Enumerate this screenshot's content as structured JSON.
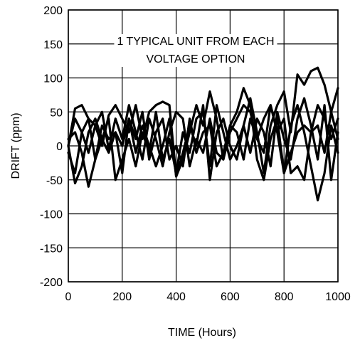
{
  "chart_data": {
    "type": "line",
    "title": "",
    "xlabel": "TIME (Hours)",
    "ylabel": "DRIFT (ppm)",
    "xlim": [
      0,
      1000
    ],
    "ylim": [
      -200,
      200
    ],
    "xticks": [
      0,
      200,
      400,
      600,
      800,
      1000
    ],
    "yticks": [
      -200,
      -150,
      -100,
      -50,
      0,
      50,
      100,
      150,
      200
    ],
    "grid": true,
    "annotation": [
      "1 TYPICAL UNIT FROM EACH",
      "VOLTAGE OPTION"
    ],
    "series": [
      {
        "x": [
          0,
          25,
          50,
          75,
          100,
          125,
          150,
          175,
          200,
          225,
          250,
          275,
          300,
          325,
          350,
          375,
          400,
          425,
          450,
          475,
          500,
          525,
          550,
          575,
          600,
          625,
          650,
          675,
          700,
          725,
          750,
          775,
          800,
          825,
          850,
          875,
          900,
          925,
          950,
          975,
          1000
        ],
        "y": [
          0,
          55,
          60,
          40,
          30,
          0,
          45,
          60,
          40,
          20,
          60,
          10,
          50,
          60,
          65,
          60,
          -45,
          -20,
          20,
          60,
          30,
          80,
          40,
          -20,
          20,
          40,
          60,
          50,
          10,
          40,
          60,
          20,
          40,
          -40,
          -30,
          -50,
          20,
          60,
          40,
          10,
          40
        ]
      },
      {
        "x": [
          0,
          25,
          50,
          75,
          100,
          125,
          150,
          175,
          200,
          225,
          250,
          275,
          300,
          325,
          350,
          375,
          400,
          425,
          450,
          475,
          500,
          525,
          550,
          575,
          600,
          625,
          650,
          675,
          700,
          725,
          750,
          775,
          800,
          825,
          850,
          875,
          900,
          925,
          950,
          975,
          1000
        ],
        "y": [
          0,
          -55,
          -30,
          20,
          40,
          10,
          -10,
          20,
          0,
          40,
          -10,
          30,
          0,
          -30,
          0,
          40,
          -45,
          -10,
          30,
          0,
          60,
          -50,
          20,
          40,
          0,
          -20,
          30,
          70,
          20,
          -40,
          30,
          60,
          80,
          20,
          105,
          90,
          110,
          115,
          90,
          50,
          85
        ]
      },
      {
        "x": [
          0,
          25,
          50,
          75,
          100,
          125,
          150,
          175,
          200,
          225,
          250,
          275,
          300,
          325,
          350,
          375,
          400,
          425,
          450,
          475,
          500,
          525,
          550,
          575,
          600,
          625,
          650,
          675,
          700,
          725,
          750,
          775,
          800,
          825,
          850,
          875,
          900,
          925,
          950,
          975,
          1000
        ],
        "y": [
          0,
          40,
          20,
          -10,
          30,
          50,
          -5,
          40,
          10,
          60,
          20,
          -20,
          40,
          10,
          -30,
          20,
          50,
          40,
          -30,
          10,
          -10,
          40,
          -10,
          -20,
          30,
          50,
          85,
          60,
          -20,
          -50,
          10,
          40,
          -40,
          30,
          60,
          20,
          -30,
          -80,
          -40,
          30,
          -10
        ]
      },
      {
        "x": [
          0,
          25,
          50,
          75,
          100,
          125,
          150,
          175,
          200,
          225,
          250,
          275,
          300,
          325,
          350,
          375,
          400,
          425,
          450,
          475,
          500,
          525,
          550,
          575,
          600,
          625,
          650,
          675,
          700,
          725,
          750,
          775,
          800,
          825,
          850,
          875,
          900,
          925,
          950,
          975,
          1000
        ],
        "y": [
          10,
          20,
          -10,
          -60,
          -20,
          10,
          40,
          -50,
          -20,
          10,
          -30,
          20,
          -10,
          50,
          -20,
          10,
          -40,
          20,
          -10,
          40,
          50,
          -30,
          60,
          20,
          -20,
          0,
          30,
          -10,
          40,
          20,
          -30,
          50,
          10,
          -20,
          40,
          70,
          30,
          -20,
          60,
          -50,
          20
        ]
      },
      {
        "x": [
          0,
          25,
          50,
          75,
          100,
          125,
          150,
          175,
          200,
          225,
          250,
          275,
          300,
          325,
          350,
          375,
          400,
          425,
          450,
          475,
          500,
          525,
          550,
          575,
          600,
          625,
          650,
          675,
          700,
          725,
          750,
          775,
          800,
          825,
          850,
          875,
          900,
          925,
          950,
          975,
          1000
        ],
        "y": [
          -10,
          -40,
          20,
          40,
          -20,
          30,
          10,
          20,
          -40,
          40,
          10,
          50,
          -20,
          20,
          40,
          -20,
          0,
          -30,
          40,
          -10,
          20,
          30,
          -30,
          -10,
          30,
          20,
          -20,
          40,
          10,
          -10,
          60,
          20,
          -40,
          -10,
          20,
          30,
          20,
          30,
          -10,
          50,
          10
        ]
      }
    ]
  }
}
